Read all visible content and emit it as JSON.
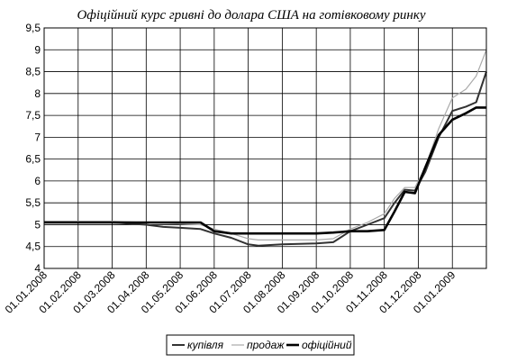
{
  "chart_data": {
    "type": "line",
    "title": "Офіційний курс гривні до долара США на готівковому ринку",
    "xlabel": "",
    "ylabel": "",
    "ylim": [
      4,
      9.5
    ],
    "yticks": [
      "4",
      "4,5",
      "5",
      "5,5",
      "6",
      "6,5",
      "7",
      "7,5",
      "8",
      "8,5",
      "9",
      "9,5"
    ],
    "x_tick_labels": [
      "01.01.2008",
      "01.02.2008",
      "01.03.2008",
      "01.04.2008",
      "01.05.2008",
      "01.06.2008",
      "01.07.2008",
      "01.08.2008",
      "01.09.2008",
      "01.10.2008",
      "01.11.2008",
      "01.12.2008",
      "01.01.2009"
    ],
    "x_domain": [
      0,
      13
    ],
    "grid": true,
    "legend_position": "bottom-right",
    "series": [
      {
        "name": "купівля",
        "color": "#333333",
        "points": [
          [
            0,
            5.05
          ],
          [
            1,
            5.05
          ],
          [
            2,
            5.05
          ],
          [
            3,
            5.0
          ],
          [
            3.5,
            4.95
          ],
          [
            4,
            4.93
          ],
          [
            4.6,
            4.9
          ],
          [
            5,
            4.8
          ],
          [
            5.5,
            4.7
          ],
          [
            6,
            4.55
          ],
          [
            6.3,
            4.52
          ],
          [
            7,
            4.55
          ],
          [
            8,
            4.57
          ],
          [
            8.5,
            4.6
          ],
          [
            9,
            4.85
          ],
          [
            9.5,
            5.0
          ],
          [
            10,
            5.15
          ],
          [
            10.3,
            5.5
          ],
          [
            10.6,
            5.8
          ],
          [
            10.9,
            5.78
          ],
          [
            11.2,
            6.2
          ],
          [
            11.6,
            7.0
          ],
          [
            12,
            7.6
          ],
          [
            12.4,
            7.7
          ],
          [
            12.7,
            7.8
          ],
          [
            13,
            8.5
          ]
        ]
      },
      {
        "name": "продаж",
        "color": "#aaaaaa",
        "points": [
          [
            0,
            5.08
          ],
          [
            1,
            5.08
          ],
          [
            2,
            5.08
          ],
          [
            3,
            5.05
          ],
          [
            4,
            5.02
          ],
          [
            4.6,
            5.0
          ],
          [
            5,
            4.9
          ],
          [
            5.5,
            4.8
          ],
          [
            6,
            4.68
          ],
          [
            6.3,
            4.65
          ],
          [
            7,
            4.65
          ],
          [
            8,
            4.65
          ],
          [
            8.5,
            4.68
          ],
          [
            9,
            4.9
          ],
          [
            9.5,
            5.05
          ],
          [
            10,
            5.25
          ],
          [
            10.3,
            5.6
          ],
          [
            10.6,
            5.85
          ],
          [
            10.9,
            5.85
          ],
          [
            11.2,
            6.3
          ],
          [
            11.6,
            7.2
          ],
          [
            12,
            7.9
          ],
          [
            12.4,
            8.1
          ],
          [
            12.7,
            8.4
          ],
          [
            13,
            9.0
          ]
        ]
      },
      {
        "name": "офіційний",
        "color": "#000000",
        "points": [
          [
            0,
            5.05
          ],
          [
            1,
            5.05
          ],
          [
            2,
            5.05
          ],
          [
            3,
            5.05
          ],
          [
            4,
            5.05
          ],
          [
            4.6,
            5.05
          ],
          [
            5,
            4.85
          ],
          [
            5.5,
            4.8
          ],
          [
            6,
            4.8
          ],
          [
            7,
            4.8
          ],
          [
            8,
            4.8
          ],
          [
            8.5,
            4.82
          ],
          [
            9,
            4.85
          ],
          [
            9.5,
            4.85
          ],
          [
            10,
            4.88
          ],
          [
            10.3,
            5.3
          ],
          [
            10.6,
            5.75
          ],
          [
            10.9,
            5.72
          ],
          [
            11.2,
            6.3
          ],
          [
            11.6,
            7.05
          ],
          [
            12,
            7.4
          ],
          [
            12.4,
            7.55
          ],
          [
            12.7,
            7.68
          ],
          [
            13,
            7.68
          ]
        ]
      }
    ]
  }
}
